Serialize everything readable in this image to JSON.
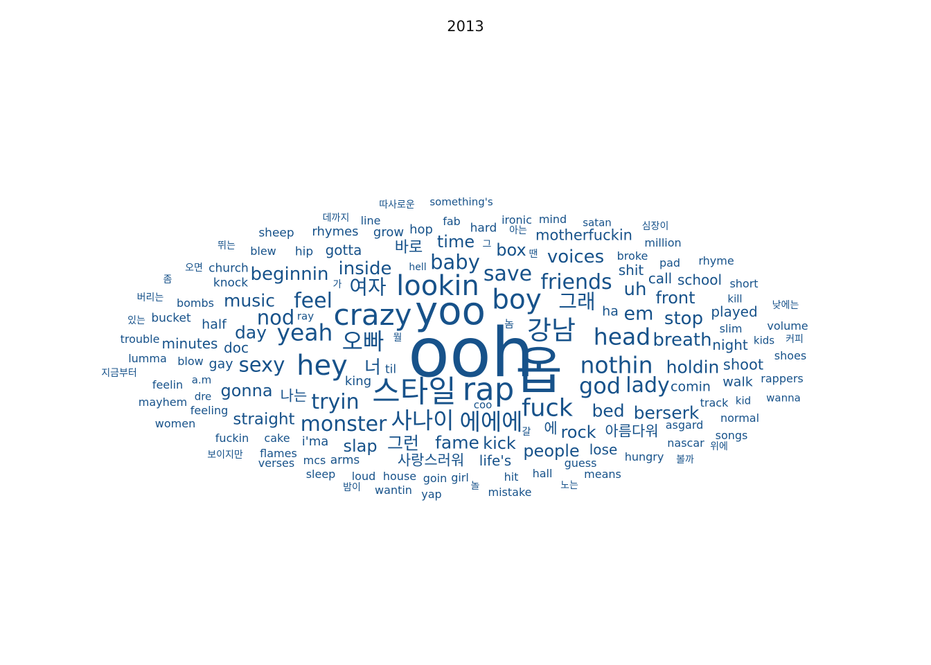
{
  "title": "2013",
  "style": {
    "word_color": "#17528a"
  },
  "words": [
    "ooh",
    "옵",
    "yoo",
    "rap",
    "스타일",
    "crazy",
    "hey",
    "lookin",
    "boy",
    "강남",
    "fuck",
    "오빠",
    "사나이",
    "에에에",
    "yeah",
    "head",
    "nothin",
    "god",
    "lady",
    "monster",
    "tryin",
    "feel",
    "nod",
    "baby",
    "save",
    "friends",
    "sexy",
    "여자",
    "그래",
    "voices",
    "em",
    "beginnin",
    "inside",
    "music",
    "day",
    "bed",
    "berserk",
    "breath",
    "holdin",
    "stop",
    "gonna",
    "straight",
    "fame",
    "kick",
    "slap",
    "people",
    "uh",
    "time",
    "rock",
    "너",
    "그런",
    "front",
    "box",
    "motherfuckin",
    "half",
    "minutes",
    "doc",
    "gay",
    "king",
    "바로",
    "나는",
    "아름다워",
    "shoot",
    "walk",
    "comin",
    "played",
    "night",
    "gotta",
    "lose",
    "school",
    "call",
    "shit",
    "life's",
    "사랑스러워",
    "에",
    "rhymes",
    "sheep",
    "i'ma",
    "mcs",
    "arms",
    "knock",
    "church",
    "bombs",
    "bucket",
    "trouble",
    "lumma",
    "blow",
    "feelin",
    "a.m",
    "mayhem",
    "dre",
    "feeling",
    "women",
    "fuckin",
    "cake",
    "flames",
    "verses",
    "sleep",
    "loud",
    "house",
    "goin",
    "girl",
    "yap",
    "wantin",
    "mistake",
    "hit",
    "hall",
    "guess",
    "means",
    "hungry",
    "asgard",
    "nascar",
    "songs",
    "normal",
    "track",
    "kid",
    "wanna",
    "rappers",
    "shoes",
    "kids",
    "volume",
    "slim",
    "kill",
    "short",
    "rhyme",
    "pad",
    "million",
    "broke",
    "ironic",
    "mind",
    "satan",
    "hard",
    "hop",
    "grow",
    "line",
    "fab",
    "something's",
    "hip",
    "blew",
    "ray",
    "til",
    "coo",
    "ha",
    "따사로운",
    "데까지",
    "심장이",
    "뛰는",
    "오면",
    "좀",
    "버리는",
    "있는",
    "지금부터",
    "보이지만",
    "밤이",
    "놀",
    "노는",
    "볼까",
    "위에",
    "커피",
    "낮에는",
    "아는",
    "땐",
    "그",
    "가",
    "놈",
    "뭘",
    "갈",
    "hell"
  ]
}
